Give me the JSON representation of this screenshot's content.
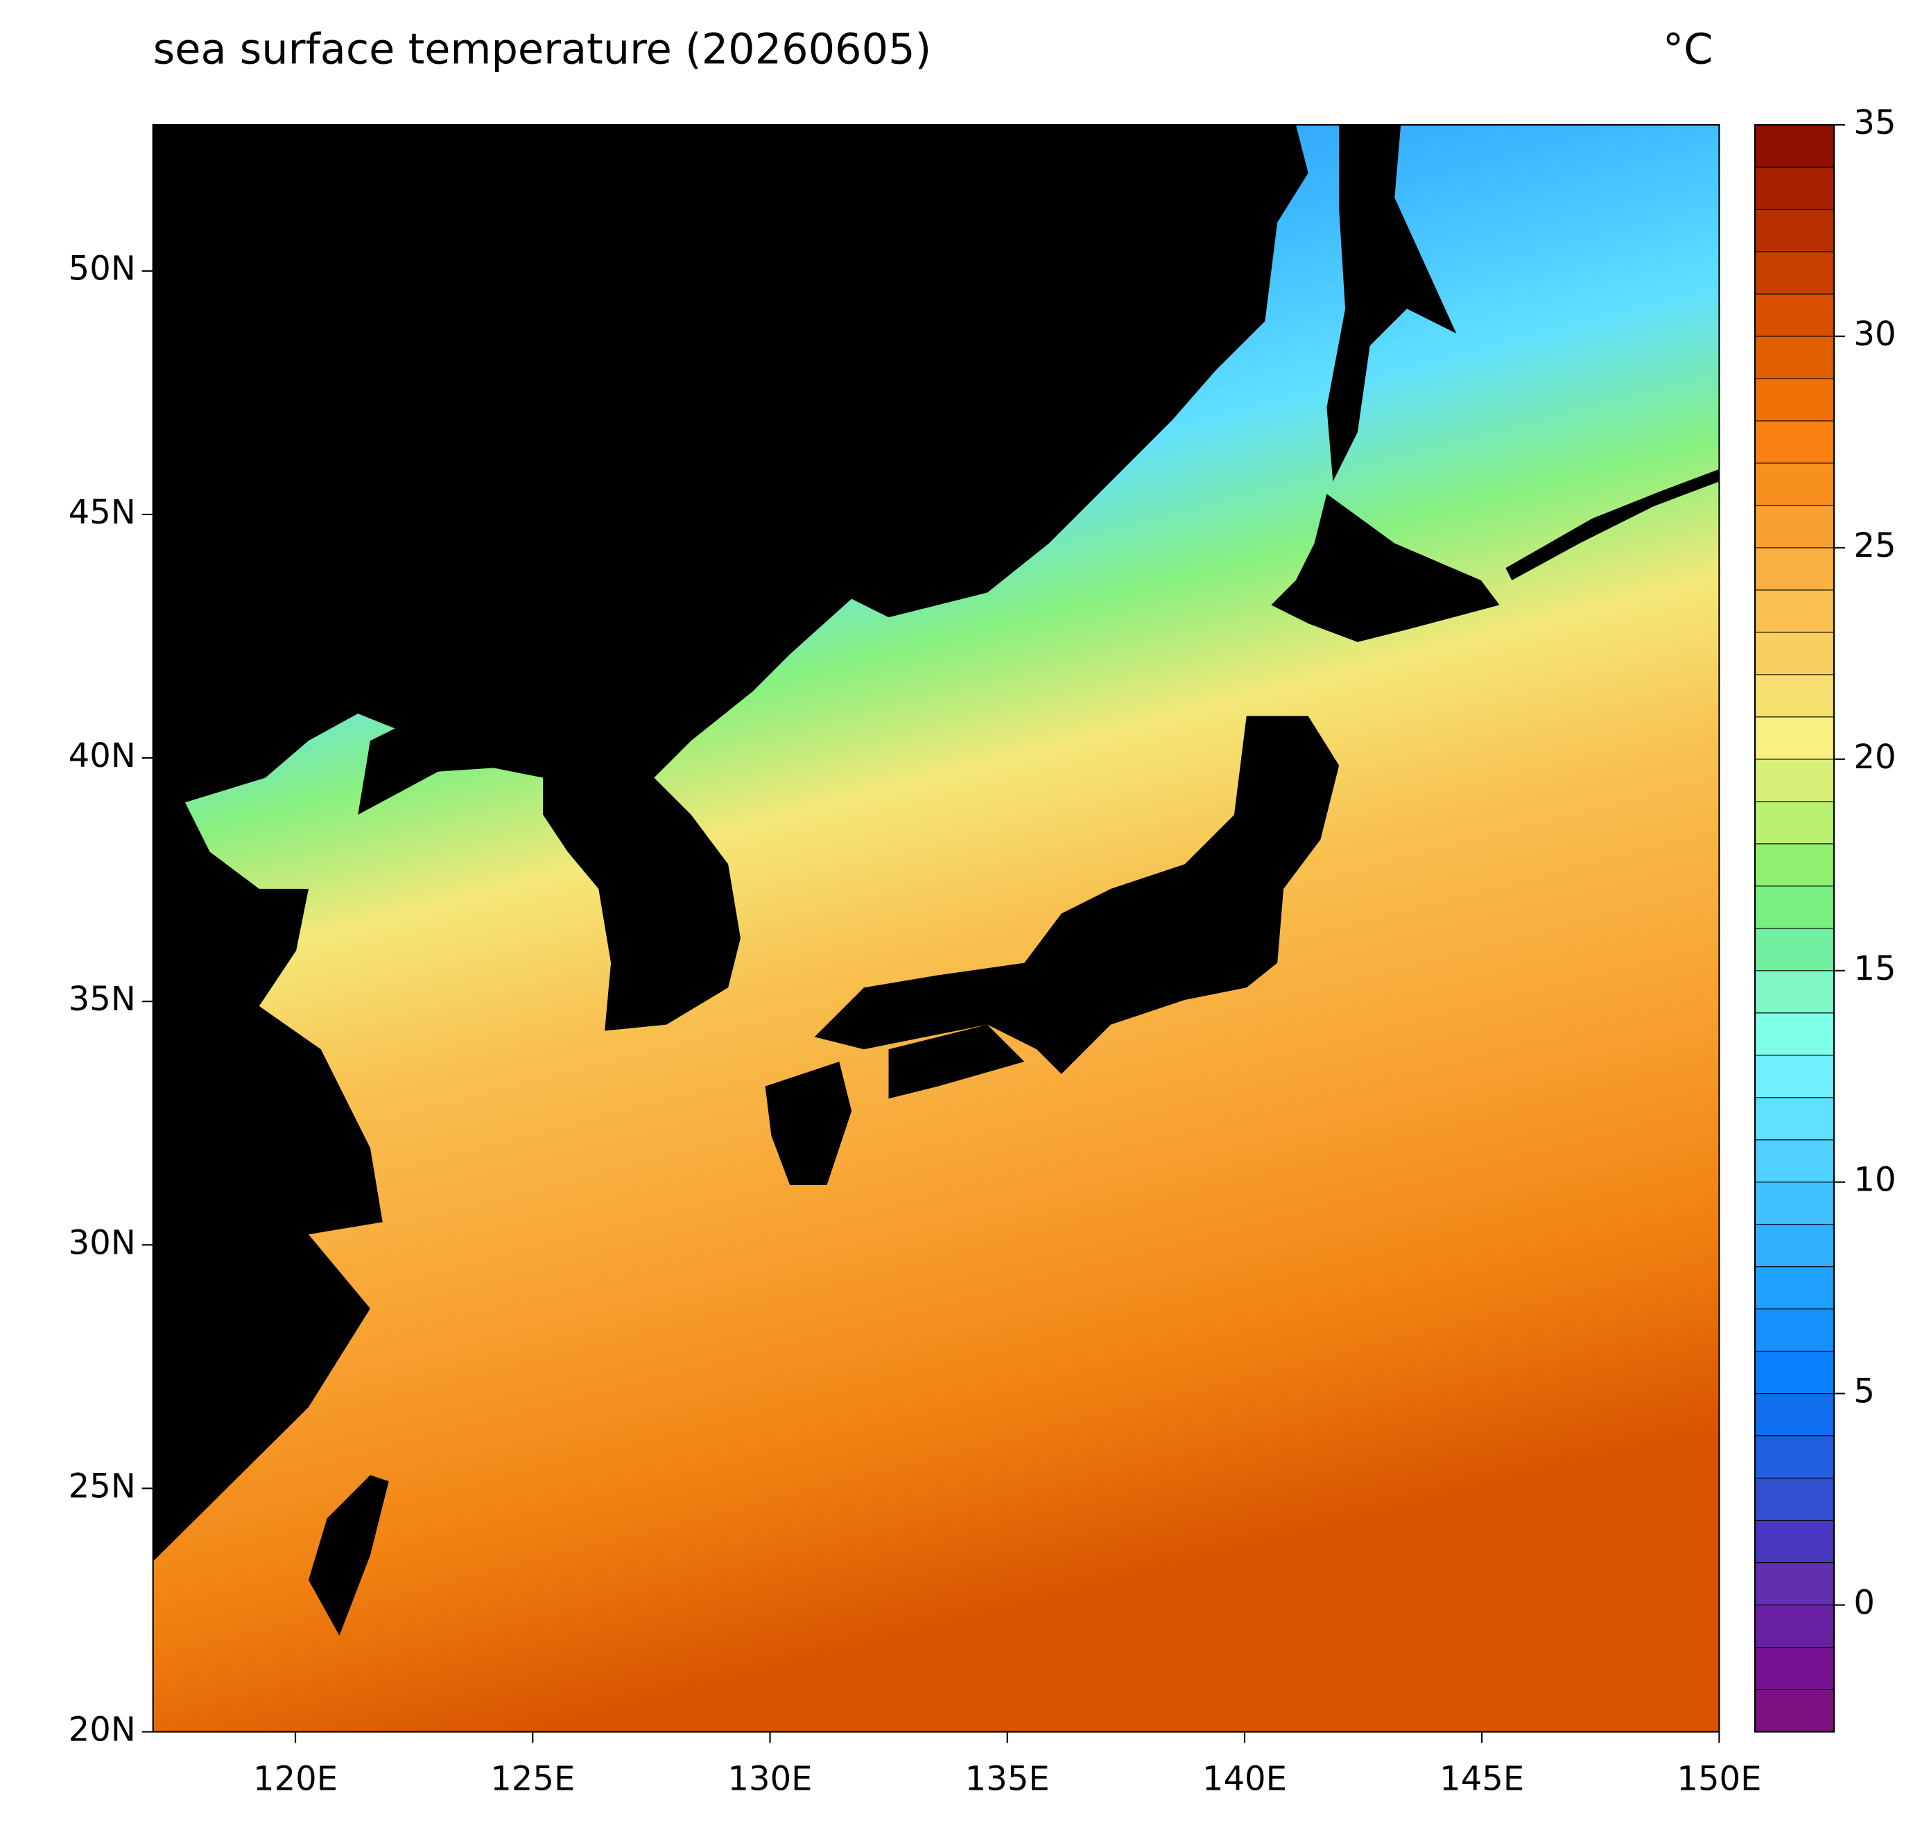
{
  "chart_data": {
    "type": "map",
    "title": "sea surface temperature (20260605)",
    "unit": "°C",
    "xlim": [
      117,
      150
    ],
    "ylim": [
      20,
      53
    ],
    "xticks": [
      {
        "value": 120,
        "label": "120E"
      },
      {
        "value": 125,
        "label": "125E"
      },
      {
        "value": 130,
        "label": "130E"
      },
      {
        "value": 135,
        "label": "135E"
      },
      {
        "value": 140,
        "label": "140E"
      },
      {
        "value": 145,
        "label": "145E"
      },
      {
        "value": 150,
        "label": "150E"
      }
    ],
    "yticks": [
      {
        "value": 20,
        "label": "20N"
      },
      {
        "value": 25,
        "label": "25N"
      },
      {
        "value": 30,
        "label": "30N"
      },
      {
        "value": 35,
        "label": "35N"
      },
      {
        "value": 40,
        "label": "40N"
      },
      {
        "value": 45,
        "label": "45N"
      },
      {
        "value": 50,
        "label": "50N"
      }
    ],
    "colorbar": {
      "lim": [
        -3,
        35
      ],
      "ticks": [
        0,
        5,
        10,
        15,
        20,
        25,
        30,
        35
      ],
      "colors": [
        "#7b1080",
        "#751090",
        "#6820a0",
        "#6030b0",
        "#4838c0",
        "#3050d0",
        "#2060e0",
        "#1070f0",
        "#0a80ff",
        "#1890ff",
        "#20a0ff",
        "#30b0ff",
        "#40c0ff",
        "#50d0ff",
        "#60e0ff",
        "#70f0ff",
        "#80ffe8",
        "#80f8c8",
        "#70f0a0",
        "#78f080",
        "#90f070",
        "#b8f070",
        "#d8f078",
        "#f8f080",
        "#f8e070",
        "#f8d060",
        "#f8c050",
        "#f8b040",
        "#f8a030",
        "#f89020",
        "#f88010",
        "#f07008",
        "#e06000",
        "#d85000",
        "#c84000",
        "#b83000",
        "#a82000",
        "#901000"
      ]
    }
  }
}
